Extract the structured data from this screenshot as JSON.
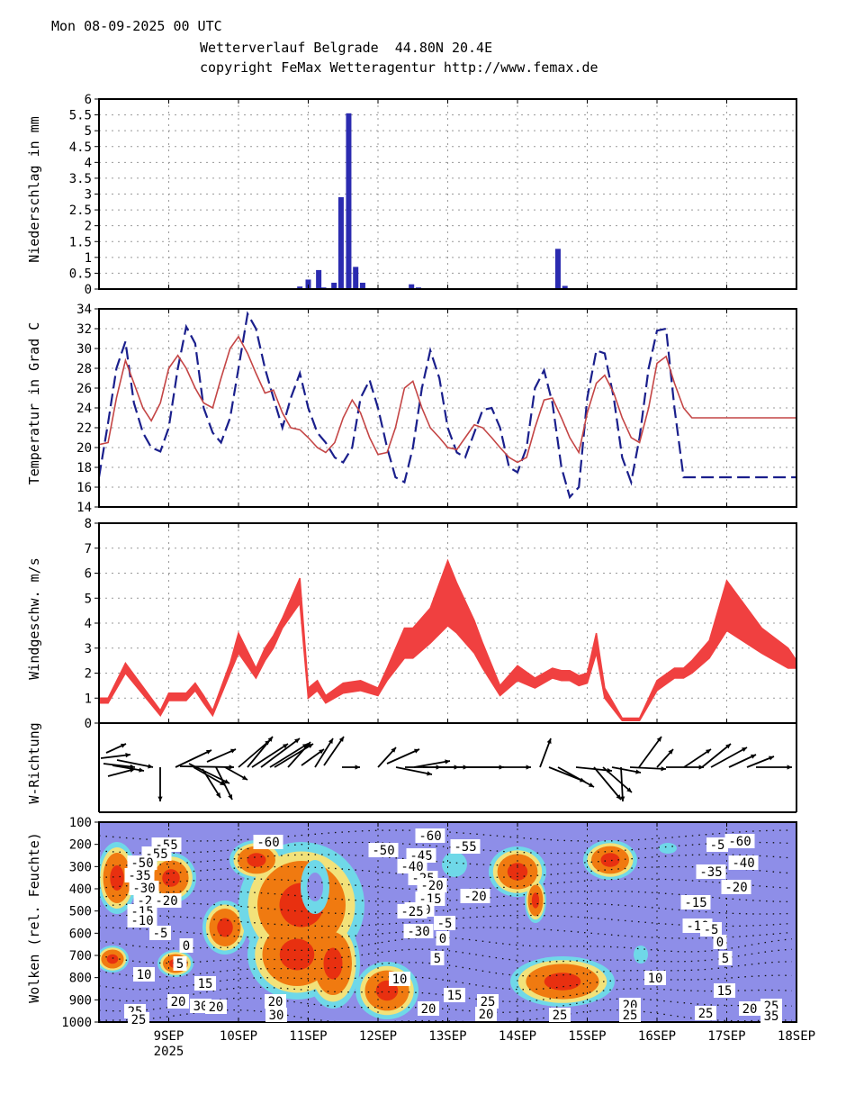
{
  "header": {
    "date_line": "Mon 08-09-2025 00 UTC",
    "title_line": "Wetterverlauf Belgrade  44.80N 20.4E",
    "copyright_line": "copyright FeMax Wetteragentur http://www.femax.de"
  },
  "colors": {
    "precip_bar": "#2b2bb0",
    "temp_dashed": "#1a1f8c",
    "temp_solid": "#c44545",
    "wind_band": "#f04040",
    "cloud_bg": "#8e8ee8",
    "cloud_cyan": "#6fd8e8",
    "cloud_yellow": "#f2e27a",
    "cloud_orange": "#f07a10",
    "cloud_red": "#e83010"
  },
  "chart_data": [
    {
      "type": "bar",
      "name": "precipitation",
      "ylabel": "Niederschlag in mm",
      "ylim": [
        0,
        6
      ],
      "yticks": [
        "0",
        "0.5",
        "1",
        "1.5",
        "2",
        "2.5",
        "3",
        "3.5",
        "4",
        "4.5",
        "5",
        "5.5",
        "6"
      ],
      "x_days": [
        0.58,
        1.58,
        2.88,
        3.0,
        3.15,
        3.22,
        3.37,
        3.47,
        3.58,
        3.68,
        3.78,
        4.48,
        4.58,
        6.58,
        6.68
      ],
      "values": [
        0.02,
        0.03,
        0.08,
        0.3,
        0.6,
        0.05,
        0.2,
        2.9,
        5.55,
        0.7,
        0.2,
        0.15,
        0.05,
        1.27,
        0.1
      ]
    },
    {
      "type": "line",
      "name": "temperature",
      "ylabel": "Temperatur in Grad C",
      "ylim": [
        14,
        34
      ],
      "yticks": [
        "14",
        "16",
        "18",
        "20",
        "22",
        "24",
        "26",
        "28",
        "30",
        "32",
        "34"
      ],
      "series": [
        {
          "name": "max/min dashed",
          "style": "dashed",
          "x": [
            0,
            0.13,
            0.25,
            0.38,
            0.5,
            0.63,
            0.75,
            0.88,
            1.0,
            1.13,
            1.25,
            1.38,
            1.5,
            1.63,
            1.75,
            1.88,
            2.0,
            2.13,
            2.25,
            2.38,
            2.5,
            2.63,
            2.75,
            2.88,
            3.0,
            3.13,
            3.25,
            3.38,
            3.5,
            3.63,
            3.75,
            3.88,
            4.0,
            4.13,
            4.25,
            4.38,
            4.5,
            4.63,
            4.75,
            4.88,
            5.0,
            5.13,
            5.25,
            5.38,
            5.5,
            5.63,
            5.75,
            5.88,
            6.0,
            6.13,
            6.25,
            6.38,
            6.5,
            6.63,
            6.75,
            6.88,
            7.0,
            7.13,
            7.25,
            7.38,
            7.5,
            7.63,
            7.75,
            7.88,
            8.0,
            8.13,
            8.25,
            8.38,
            8.5,
            8.63,
            8.75,
            8.88,
            9.0,
            9.13,
            9.25,
            9.38,
            9.5,
            9.63,
            9.75,
            9.88,
            10.0
          ],
          "y": [
            17,
            22.5,
            28,
            30.7,
            24.5,
            21.5,
            20,
            19.6,
            22,
            28,
            32.2,
            30.5,
            24,
            21.5,
            20.5,
            23,
            28,
            33.5,
            32,
            28,
            25,
            22,
            25,
            27.5,
            24,
            21.5,
            20.5,
            19,
            18.5,
            20,
            25,
            26.8,
            24,
            20,
            17,
            16.5,
            20,
            26,
            29.8,
            27,
            22,
            19.5,
            19,
            21.5,
            23.8,
            24,
            22,
            18,
            17.5,
            20,
            26,
            27.8,
            24.5,
            18,
            15,
            16,
            25,
            29.8,
            29.5,
            25,
            19,
            16.5,
            21,
            28,
            31.8,
            32,
            24,
            17,
            17,
            17,
            17,
            17,
            17,
            17,
            17,
            17,
            17,
            17,
            17,
            17,
            17
          ]
        },
        {
          "name": "mean solid",
          "style": "solid",
          "x": [
            0,
            0.13,
            0.25,
            0.38,
            0.5,
            0.63,
            0.75,
            0.88,
            1.0,
            1.13,
            1.25,
            1.38,
            1.5,
            1.63,
            1.75,
            1.88,
            2.0,
            2.13,
            2.25,
            2.38,
            2.5,
            2.63,
            2.75,
            2.88,
            3.0,
            3.13,
            3.25,
            3.38,
            3.5,
            3.63,
            3.75,
            3.88,
            4.0,
            4.13,
            4.25,
            4.38,
            4.5,
            4.63,
            4.75,
            4.88,
            5.0,
            5.13,
            5.25,
            5.38,
            5.5,
            5.63,
            5.75,
            5.88,
            6.0,
            6.13,
            6.25,
            6.38,
            6.5,
            6.63,
            6.75,
            6.88,
            7.0,
            7.13,
            7.25,
            7.38,
            7.5,
            7.63,
            7.75,
            7.88,
            8.0,
            8.13,
            8.25,
            8.38,
            8.5,
            8.63,
            8.75,
            8.88,
            9.0,
            9.13,
            9.25,
            9.38,
            9.5,
            9.63,
            9.75,
            9.88,
            10.0
          ],
          "y": [
            20.3,
            20.5,
            25,
            28.8,
            26.5,
            24,
            22.7,
            24.5,
            28,
            29.3,
            28,
            26,
            24.5,
            24,
            27,
            30,
            31.2,
            29.5,
            27.5,
            25.5,
            25.8,
            23.5,
            22,
            21.8,
            21,
            20,
            19.5,
            20.5,
            23,
            24.8,
            23.5,
            21,
            19.3,
            19.5,
            22,
            26,
            26.7,
            24,
            22,
            21,
            20,
            19.8,
            21,
            22.3,
            22,
            21,
            20,
            19,
            18.5,
            19,
            22,
            24.8,
            25,
            23,
            21,
            19.5,
            23.5,
            26.5,
            27.3,
            25.5,
            23,
            21,
            20.5,
            24,
            28.5,
            29.2,
            26.5,
            24,
            23,
            23,
            23,
            23,
            23,
            23,
            23,
            23,
            23,
            23,
            23,
            23,
            23
          ]
        }
      ]
    },
    {
      "type": "area",
      "name": "wind speed",
      "ylabel": "Windgeschw. m/s",
      "ylim": [
        0,
        8
      ],
      "yticks": [
        "0",
        "1",
        "2",
        "3",
        "4",
        "5",
        "6",
        "7",
        "8"
      ],
      "x": [
        0,
        0.13,
        0.38,
        0.88,
        1.0,
        1.25,
        1.38,
        1.5,
        1.63,
        1.88,
        2.0,
        2.25,
        2.38,
        2.5,
        2.63,
        2.88,
        3.0,
        3.13,
        3.25,
        3.5,
        3.75,
        4.0,
        4.13,
        4.38,
        4.5,
        4.75,
        5.0,
        5.13,
        5.38,
        5.5,
        5.75,
        6.0,
        6.25,
        6.5,
        6.63,
        6.75,
        6.88,
        7.0,
        7.13,
        7.25,
        7.5,
        7.75,
        8.0,
        8.25,
        8.38,
        8.5,
        8.75,
        9.0,
        9.5,
        9.88,
        10.0
      ],
      "low": [
        0.8,
        0.8,
        2.0,
        0.3,
        0.9,
        0.9,
        1.3,
        0.8,
        0.3,
        2.0,
        2.8,
        1.8,
        2.5,
        3.0,
        3.8,
        4.8,
        1.0,
        1.3,
        0.8,
        1.2,
        1.3,
        1.1,
        1.7,
        2.6,
        2.6,
        3.2,
        3.9,
        3.6,
        2.8,
        2.2,
        1.1,
        1.7,
        1.4,
        1.8,
        1.7,
        1.7,
        1.5,
        1.6,
        2.8,
        1.0,
        0.1,
        0.1,
        1.3,
        1.8,
        1.8,
        2.0,
        2.6,
        3.7,
        2.8,
        2.2,
        2.2
      ],
      "high": [
        1.0,
        1.0,
        2.4,
        0.5,
        1.2,
        1.2,
        1.6,
        1.1,
        0.5,
        2.4,
        3.6,
        2.2,
        3.0,
        3.5,
        4.2,
        5.8,
        1.4,
        1.7,
        1.1,
        1.6,
        1.7,
        1.4,
        2.2,
        3.8,
        3.8,
        4.6,
        6.5,
        5.6,
        4.1,
        3.2,
        1.5,
        2.3,
        1.8,
        2.2,
        2.1,
        2.1,
        1.9,
        2.0,
        3.6,
        1.4,
        0.2,
        0.2,
        1.7,
        2.2,
        2.2,
        2.5,
        3.3,
        5.7,
        3.8,
        3.0,
        2.5
      ]
    }
  ],
  "winddir": {
    "ylabel": "W-Richtung"
  },
  "clouds": {
    "ylabel": "Wolken (rel. Feuchte)",
    "yticks": [
      "100",
      "200",
      "300",
      "400",
      "500",
      "600",
      "700",
      "800",
      "900",
      "1000"
    ],
    "labels": [
      "-55",
      "-60",
      "-50",
      "-60",
      "-55",
      "-55",
      "-60",
      "-5",
      "-50",
      "-35",
      "-30",
      "-25",
      "-20",
      "-15",
      "-10",
      "-5",
      "0",
      "5",
      "10",
      "15",
      "20",
      "25",
      "30",
      "-45",
      "-40",
      "-25",
      "-20",
      "-15",
      "-10",
      "-5",
      "0",
      "5",
      "10",
      "15",
      "20",
      "25",
      "-15",
      "-20",
      "-25",
      "-30",
      "-35",
      "-10",
      "-5",
      "0",
      "5",
      "10",
      "15",
      "20",
      "25",
      "-40",
      "-20",
      "25",
      "30",
      "20",
      "25",
      "20",
      "25",
      "35",
      "20",
      "20",
      "25",
      "30"
    ]
  },
  "xaxis": {
    "days": [
      "9SEP",
      "10SEP",
      "11SEP",
      "12SEP",
      "13SEP",
      "14SEP",
      "15SEP",
      "16SEP",
      "17SEP",
      "18SEP"
    ],
    "year": "2025"
  }
}
